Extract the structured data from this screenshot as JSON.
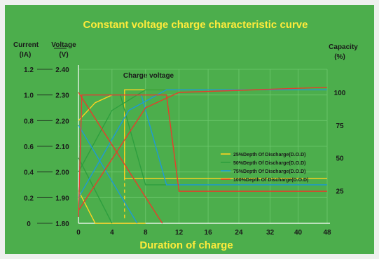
{
  "chart_data": {
    "type": "line",
    "title": "Constant voltage charge characteristic curve",
    "xlabel": "Duration of charge",
    "x_ticks": [
      "0",
      "4",
      "8",
      "12",
      "16",
      "24",
      "32",
      "40",
      "48"
    ],
    "current_axis": {
      "label_top": "Current",
      "label_unit": "(IA)",
      "ticks": [
        "0",
        "0.2",
        "0.4",
        "0.6",
        "0.8",
        "1.0",
        "1.2"
      ]
    },
    "voltage_axis": {
      "label_top": "Voltage",
      "label_unit": "(V)",
      "ticks": [
        "1.80",
        "1.90",
        "2.00",
        "2.10",
        "2.20",
        "2.30",
        "2.40"
      ]
    },
    "capacity_axis": {
      "label_top": "Capacity",
      "label_unit": "(%)",
      "ticks": [
        "25",
        "50",
        "75",
        "100"
      ]
    },
    "annotation": "Charge voltage",
    "grid": true,
    "legend_position": "right-middle",
    "series": [
      {
        "name": "25%Depth Of Discharge(D.O.D)",
        "color": "#ffd21f",
        "voltage": [
          [
            0,
            2.2
          ],
          [
            2,
            2.27
          ],
          [
            4,
            2.3
          ],
          [
            5.5,
            2.3
          ],
          [
            5.5,
            2.32
          ],
          [
            48,
            2.32
          ]
        ],
        "current": [
          [
            0,
            0.05
          ],
          [
            0.4,
            1.0
          ],
          [
            5.5,
            1.0
          ],
          [
            5.5,
            0.35
          ],
          [
            48,
            0.35
          ]
        ],
        "capacity": [
          [
            0,
            25
          ],
          [
            2,
            0
          ],
          [
            8,
            0
          ]
        ]
      },
      {
        "name": "50%Depth Of Discharge(D.O.D)",
        "color": "#2e9e3e",
        "voltage": [
          [
            0,
            2.0
          ],
          [
            4,
            2.24
          ],
          [
            8,
            2.32
          ],
          [
            48,
            2.32
          ]
        ],
        "current": [
          [
            0,
            0.05
          ],
          [
            0.4,
            1.0
          ],
          [
            5,
            1.0
          ],
          [
            8,
            0.3
          ],
          [
            48,
            0.3
          ]
        ],
        "capacity": [
          [
            0,
            50
          ],
          [
            4,
            0
          ]
        ]
      },
      {
        "name": "75%Depth Of Discharge(D.O.D)",
        "color": "#1e9ad6",
        "voltage": [
          [
            0,
            1.9
          ],
          [
            6,
            2.24
          ],
          [
            10.5,
            2.32
          ],
          [
            48,
            2.32
          ]
        ],
        "current": [
          [
            0,
            0.05
          ],
          [
            0.4,
            1.0
          ],
          [
            7.5,
            1.0
          ],
          [
            10.5,
            0.3
          ],
          [
            48,
            0.3
          ]
        ],
        "capacity": [
          [
            0,
            75
          ],
          [
            7,
            0
          ]
        ]
      },
      {
        "name": "100%Depth Of Discharge(D.O.D)",
        "color": "#e83c2a",
        "voltage": [
          [
            0,
            1.85
          ],
          [
            8,
            2.25
          ],
          [
            12,
            2.31
          ],
          [
            48,
            2.33
          ]
        ],
        "current": [
          [
            0,
            0.05
          ],
          [
            0.4,
            1.0
          ],
          [
            10.5,
            1.0
          ],
          [
            12,
            0.25
          ],
          [
            48,
            0.25
          ]
        ],
        "capacity": [
          [
            0,
            100
          ],
          [
            10,
            0
          ]
        ]
      }
    ],
    "colors": {
      "background": "#4cae4c",
      "grid": "#6ec86e",
      "axis": "#ffffff",
      "title": "#ffeb3b",
      "label": "#1a1a1a"
    }
  }
}
